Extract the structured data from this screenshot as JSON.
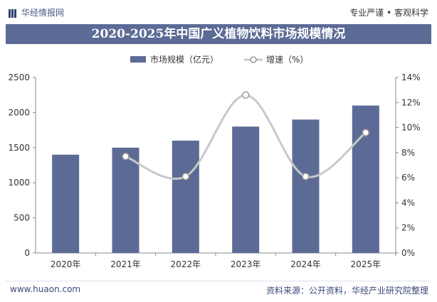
{
  "header": {
    "brand": "华经情报网",
    "slogan": "专业严谨 • 客观科学"
  },
  "chart_data": {
    "type": "bar",
    "title": "2020-2025年中国广义植物饮料市场规模情况",
    "categories": [
      "2020年",
      "2021年",
      "2022年",
      "2023年",
      "2024年",
      "2025年"
    ],
    "series": [
      {
        "name": "市场规模（亿元）",
        "type": "bar",
        "axis": "left",
        "values": [
          1400,
          1500,
          1600,
          1800,
          1900,
          2100
        ]
      },
      {
        "name": "增速（%）",
        "type": "line",
        "axis": "right",
        "values": [
          null,
          7.7,
          6.1,
          12.6,
          6.1,
          9.6
        ]
      }
    ],
    "y_left": {
      "ylim": [
        0,
        2500
      ],
      "ticks": [
        "0",
        "500",
        "1000",
        "1500",
        "2000",
        "2500"
      ]
    },
    "y_right": {
      "ylim": [
        0,
        14
      ],
      "ticks": [
        "0%",
        "2%",
        "4%",
        "6%",
        "8%",
        "10%",
        "12%",
        "14%"
      ]
    },
    "legend_position": "top-center",
    "colors": {
      "bar": "#5c6b96",
      "line": "#c8c8c8",
      "marker_fill": "#ffffff",
      "marker_stroke": "#999999"
    }
  },
  "footer": {
    "website": "www.huaon.com",
    "source": "资料来源：公开资料，华经产业研究院整理"
  }
}
